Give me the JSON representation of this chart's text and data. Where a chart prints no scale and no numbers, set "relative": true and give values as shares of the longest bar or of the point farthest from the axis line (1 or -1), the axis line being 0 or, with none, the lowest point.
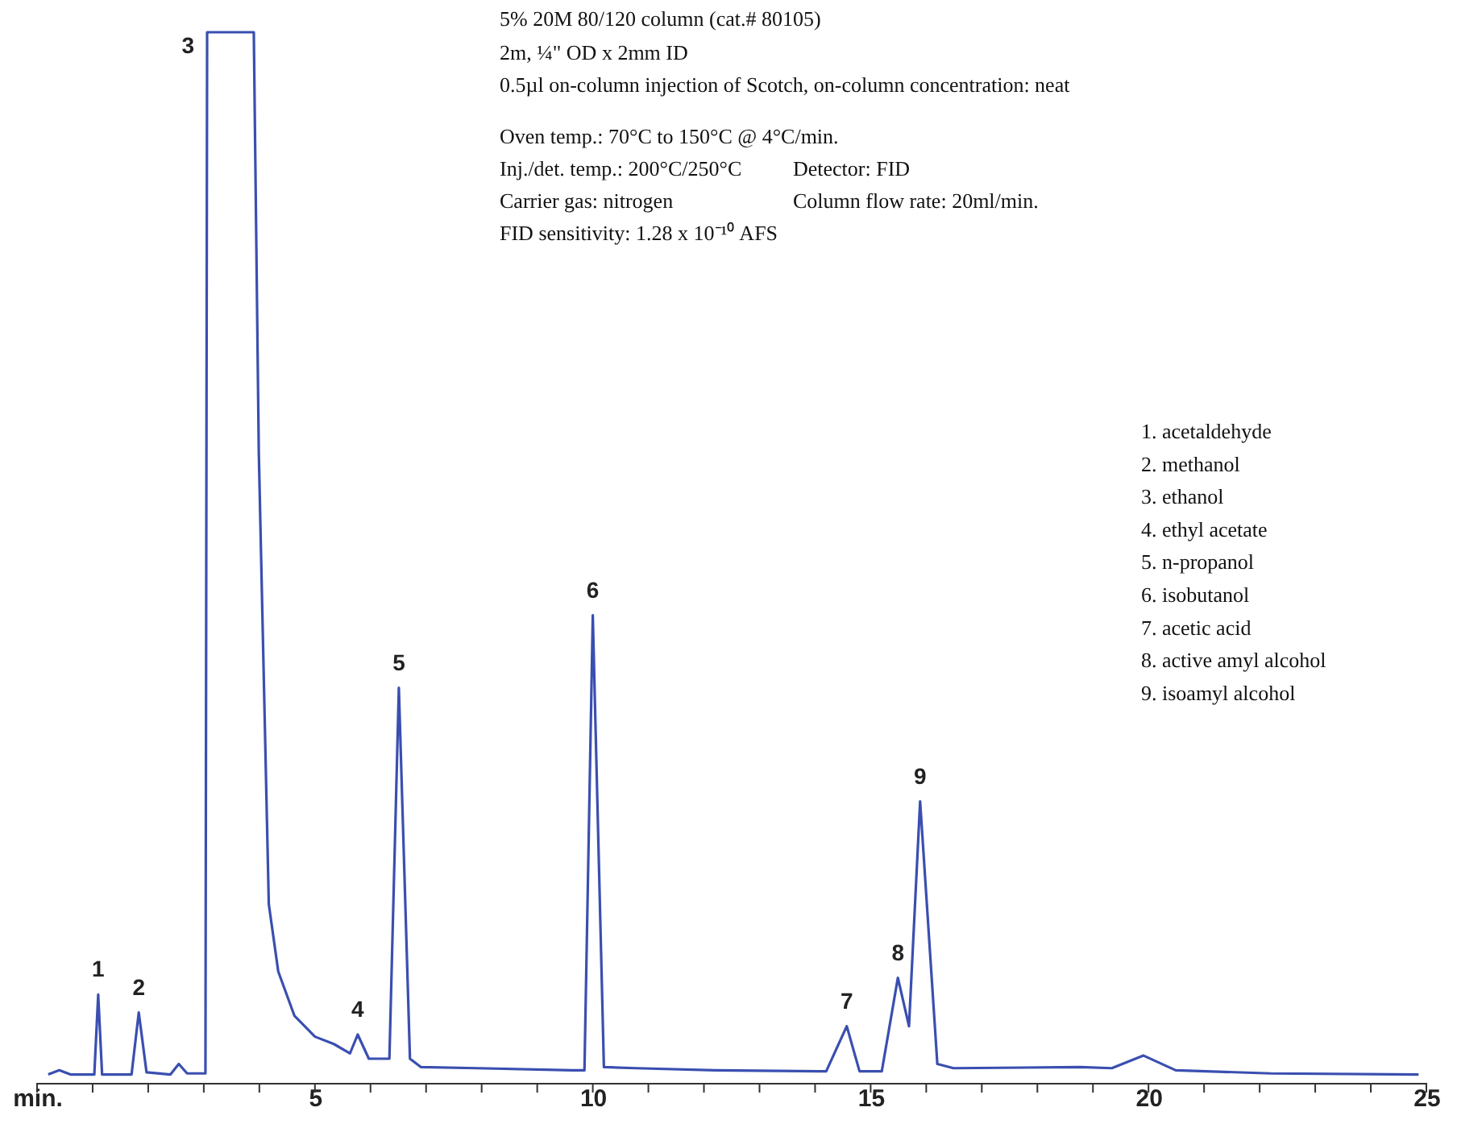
{
  "chart_data": {
    "type": "line",
    "relative": true,
    "grid": false,
    "marker": "none",
    "line_style": "solid",
    "xlim": [
      0,
      25
    ],
    "xticks": [
      {
        "value": 0,
        "label": "min."
      },
      {
        "value": 1,
        "label": null
      },
      {
        "value": 2,
        "label": null
      },
      {
        "value": 3,
        "label": null
      },
      {
        "value": 4,
        "label": null
      },
      5,
      {
        "value": 6,
        "label": null
      },
      {
        "value": 7,
        "label": null
      },
      {
        "value": 8,
        "label": null
      },
      {
        "value": 9,
        "label": null
      },
      10,
      {
        "value": 11,
        "label": null
      },
      {
        "value": 12,
        "label": null
      },
      {
        "value": 13,
        "label": null
      },
      {
        "value": 14,
        "label": null
      },
      15,
      {
        "value": 16,
        "label": null
      },
      {
        "value": 17,
        "label": null
      },
      {
        "value": 18,
        "label": null
      },
      {
        "value": 19,
        "label": null
      },
      20,
      {
        "value": 21,
        "label": null
      },
      {
        "value": 22,
        "label": null
      },
      {
        "value": 23,
        "label": null
      },
      {
        "value": 24,
        "label": null
      },
      25
    ],
    "series": [
      {
        "color": "#3a4fb0",
        "x": [
          0.2,
          0.4,
          0.6,
          1.03,
          1.1,
          1.17,
          1.7,
          1.83,
          1.97,
          2.4,
          2.55,
          2.7,
          3.03,
          3.06,
          3.9,
          3.99,
          4.17,
          4.34,
          4.63,
          5.0,
          5.34,
          5.63,
          5.77,
          5.97,
          6.34,
          6.51,
          6.71,
          6.91,
          7.91,
          9.63,
          9.85,
          10.0,
          10.2,
          10.77,
          12.2,
          14.2,
          14.57,
          14.8,
          15.2,
          15.49,
          15.69,
          15.89,
          16.2,
          16.49,
          18.77,
          19.34,
          19.91,
          20.49,
          22.2,
          24.86
        ],
        "values": [
          0.008,
          0.012,
          0.008,
          0.008,
          0.084,
          0.008,
          0.008,
          0.067,
          0.01,
          0.008,
          0.018,
          0.009,
          0.009,
          1.0,
          1.0,
          0.6,
          0.17,
          0.106,
          0.064,
          0.044,
          0.037,
          0.028,
          0.046,
          0.023,
          0.023,
          0.376,
          0.023,
          0.015,
          0.014,
          0.012,
          0.012,
          0.445,
          0.015,
          0.014,
          0.012,
          0.011,
          0.054,
          0.011,
          0.011,
          0.1,
          0.054,
          0.268,
          0.018,
          0.014,
          0.015,
          0.014,
          0.026,
          0.012,
          0.009,
          0.008
        ]
      }
    ],
    "annotations": [
      "5% 20M 80/120 column (cat.# 80105)",
      "2m, ¼\" OD x 2mm ID",
      "0.5µl on-column injection of Scotch, on-column concentration: neat",
      "Oven temp.: 70°C to 150°C @ 4°C/min.",
      "Inj./det. temp.: 200°C/250°C",
      "Detector: FID",
      "Carrier gas: nitrogen",
      "Column flow rate: 20ml/min.",
      "FID sensitivity: 1.28 x 10⁻¹⁰ AFS",
      "1. acetaldehyde",
      "2. methanol",
      "3. ethanol",
      "4. ethyl acetate",
      "5. n-propanol",
      "6. isobutanol",
      "7. acetic acid",
      "8. active amyl alcohol",
      "9. isoamyl alcohol",
      {
        "text": "1",
        "x": 1.1,
        "y": 0.084
      },
      {
        "text": "2",
        "x": 1.83,
        "y": 0.067
      },
      {
        "text": "3",
        "x": 3.06,
        "y": 1.0
      },
      {
        "text": "4",
        "x": 5.77,
        "y": 0.046
      },
      {
        "text": "5",
        "x": 6.51,
        "y": 0.376
      },
      {
        "text": "6",
        "x": 10.0,
        "y": 0.445
      },
      {
        "text": "7",
        "x": 14.57,
        "y": 0.054
      },
      {
        "text": "8",
        "x": 15.49,
        "y": 0.1
      },
      {
        "text": "9",
        "x": 15.89,
        "y": 0.268
      }
    ]
  }
}
